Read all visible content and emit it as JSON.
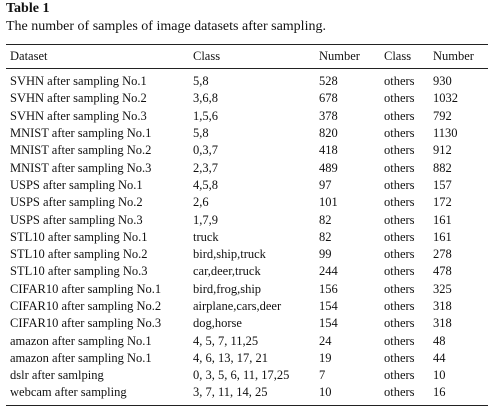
{
  "title": "Table 1",
  "caption": "The number of samples of image datasets after sampling.",
  "table": {
    "header": [
      "Dataset",
      "Class",
      "Number",
      "Class",
      "Number"
    ],
    "rows": [
      [
        "SVHN after sampling No.1",
        "5,8",
        "528",
        "others",
        "930"
      ],
      [
        "SVHN after sampling No.2",
        "3,6,8",
        "678",
        "others",
        "1032"
      ],
      [
        "SVHN after sampling No.3",
        "1,5,6",
        "378",
        "others",
        "792"
      ],
      [
        "MNIST after sampling No.1",
        "5,8",
        "820",
        "others",
        "1130"
      ],
      [
        "MNIST after sampling No.2",
        "0,3,7",
        "418",
        "others",
        "912"
      ],
      [
        "MNIST after sampling No.3",
        "2,3,7",
        "489",
        "others",
        "882"
      ],
      [
        "USPS after sampling No.1",
        "4,5,8",
        "97",
        "others",
        "157"
      ],
      [
        "USPS after sampling No.2",
        "2,6",
        "101",
        "others",
        "172"
      ],
      [
        "USPS after sampling No.3",
        "1,7,9",
        "82",
        "others",
        "161"
      ],
      [
        "STL10 after sampling No.1",
        "truck",
        "82",
        "others",
        "161"
      ],
      [
        "STL10 after sampling No.2",
        "bird,ship,truck",
        "99",
        "others",
        "278"
      ],
      [
        "STL10 after sampling No.3",
        "car,deer,truck",
        "244",
        "others",
        "478"
      ],
      [
        "CIFAR10 after sampling No.1",
        "bird,frog,ship",
        "156",
        "others",
        "325"
      ],
      [
        "CIFAR10 after sampling No.2",
        "airplane,cars,deer",
        "154",
        "others",
        "318"
      ],
      [
        "CIFAR10 after sampling No.3",
        "dog,horse",
        "154",
        "others",
        "318"
      ],
      [
        "amazon after sampling No.1",
        "4, 5, 7, 11,25",
        "24",
        "others",
        "48"
      ],
      [
        "amazon after sampling No.1",
        "4, 6, 13, 17, 21",
        "19",
        "others",
        "44"
      ],
      [
        "dslr after samlping",
        "0, 3, 5, 6, 11, 17,25",
        "7",
        "others",
        "10"
      ],
      [
        "webcam after sampling",
        "3, 7, 11, 14, 25",
        "10",
        "others",
        "16"
      ]
    ]
  }
}
